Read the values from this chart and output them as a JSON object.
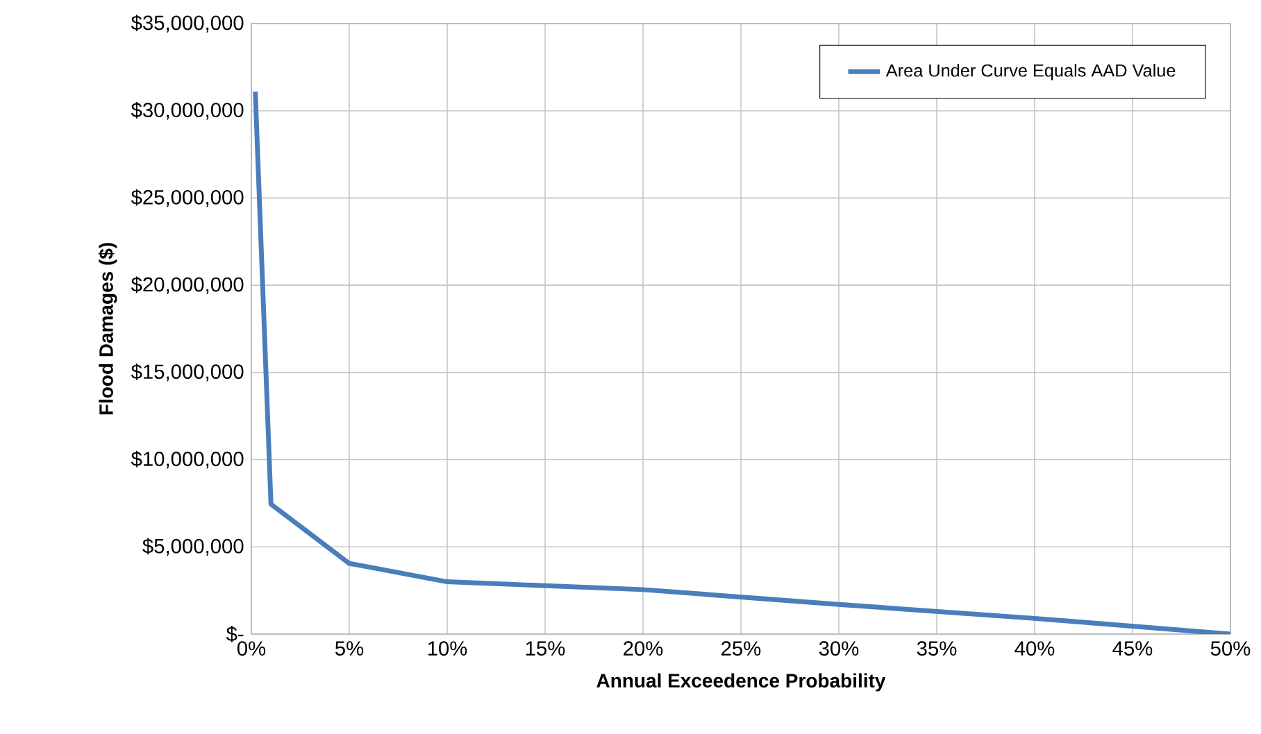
{
  "chart_data": {
    "type": "line",
    "xlabel": "Annual Exceedence Probability",
    "ylabel": "Flood Damages ($)",
    "series": [
      {
        "name": "Area Under Curve Equals AAD Value",
        "color": "#4a7ebb",
        "x": [
          0.2,
          1,
          5,
          10,
          20,
          30,
          40,
          50
        ],
        "values": [
          31100000,
          7450000,
          4050000,
          3000000,
          2550000,
          1700000,
          900000,
          0
        ]
      }
    ],
    "xlim": [
      0,
      50
    ],
    "ylim": [
      0,
      35000000
    ],
    "xticks": [
      {
        "value": 0,
        "label": "0%"
      },
      {
        "value": 5,
        "label": "5%"
      },
      {
        "value": 10,
        "label": "10%"
      },
      {
        "value": 15,
        "label": "15%"
      },
      {
        "value": 20,
        "label": "20%"
      },
      {
        "value": 25,
        "label": "25%"
      },
      {
        "value": 30,
        "label": "30%"
      },
      {
        "value": 35,
        "label": "35%"
      },
      {
        "value": 40,
        "label": "40%"
      },
      {
        "value": 45,
        "label": "45%"
      },
      {
        "value": 50,
        "label": "50%"
      }
    ],
    "yticks": [
      {
        "value": 0,
        "label": "$-"
      },
      {
        "value": 5000000,
        "label": "$5,000,000"
      },
      {
        "value": 10000000,
        "label": "$10,000,000"
      },
      {
        "value": 15000000,
        "label": "$15,000,000"
      },
      {
        "value": 20000000,
        "label": "$20,000,000"
      },
      {
        "value": 25000000,
        "label": "$25,000,000"
      },
      {
        "value": 30000000,
        "label": "$30,000,000"
      },
      {
        "value": 35000000,
        "label": "$35,000,000"
      }
    ],
    "grid": true,
    "legend": "top right",
    "marker": "none",
    "line_style": "solid"
  }
}
